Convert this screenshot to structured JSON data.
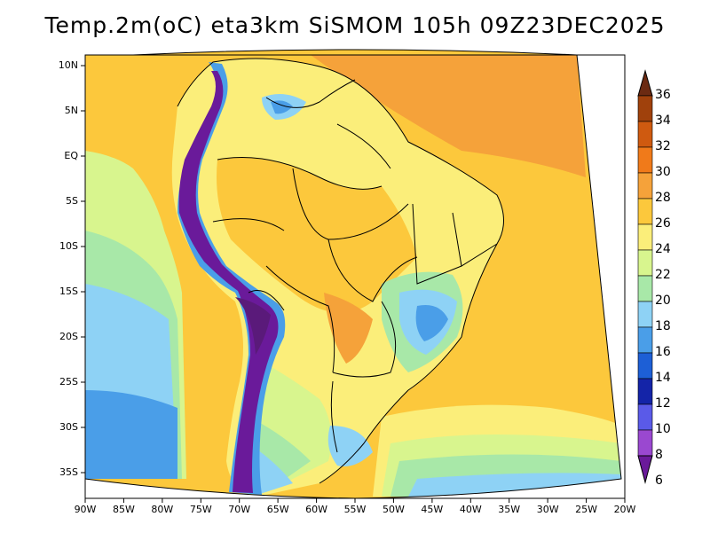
{
  "title": "Temp.2m(oC) eta3km SiSMOM 105h 09Z23DEC2025",
  "lon_labels": [
    "90W",
    "85W",
    "80W",
    "75W",
    "70W",
    "65W",
    "60W",
    "55W",
    "50W",
    "45W",
    "40W",
    "35W",
    "30W",
    "25W",
    "20W"
  ],
  "lat_labels": [
    "10N",
    "5N",
    "EQ",
    "5S",
    "10S",
    "15S",
    "20S",
    "25S",
    "30S",
    "35S"
  ],
  "colorbar": {
    "labels": [
      "36",
      "34",
      "32",
      "30",
      "28",
      "26",
      "24",
      "22",
      "20",
      "18",
      "16",
      "14",
      "12",
      "10",
      "8",
      "6"
    ],
    "colors": [
      "#6b2a12",
      "#a0410c",
      "#cf5a10",
      "#f07a1a",
      "#f5a23a",
      "#fcc83c",
      "#fbee7a",
      "#d8f58e",
      "#a8e8a8",
      "#8ed2f5",
      "#4a9ee8",
      "#1d5fd6",
      "#1424a8",
      "#5a5ae8",
      "#9a48d0",
      "#6a1a9a"
    ]
  }
}
